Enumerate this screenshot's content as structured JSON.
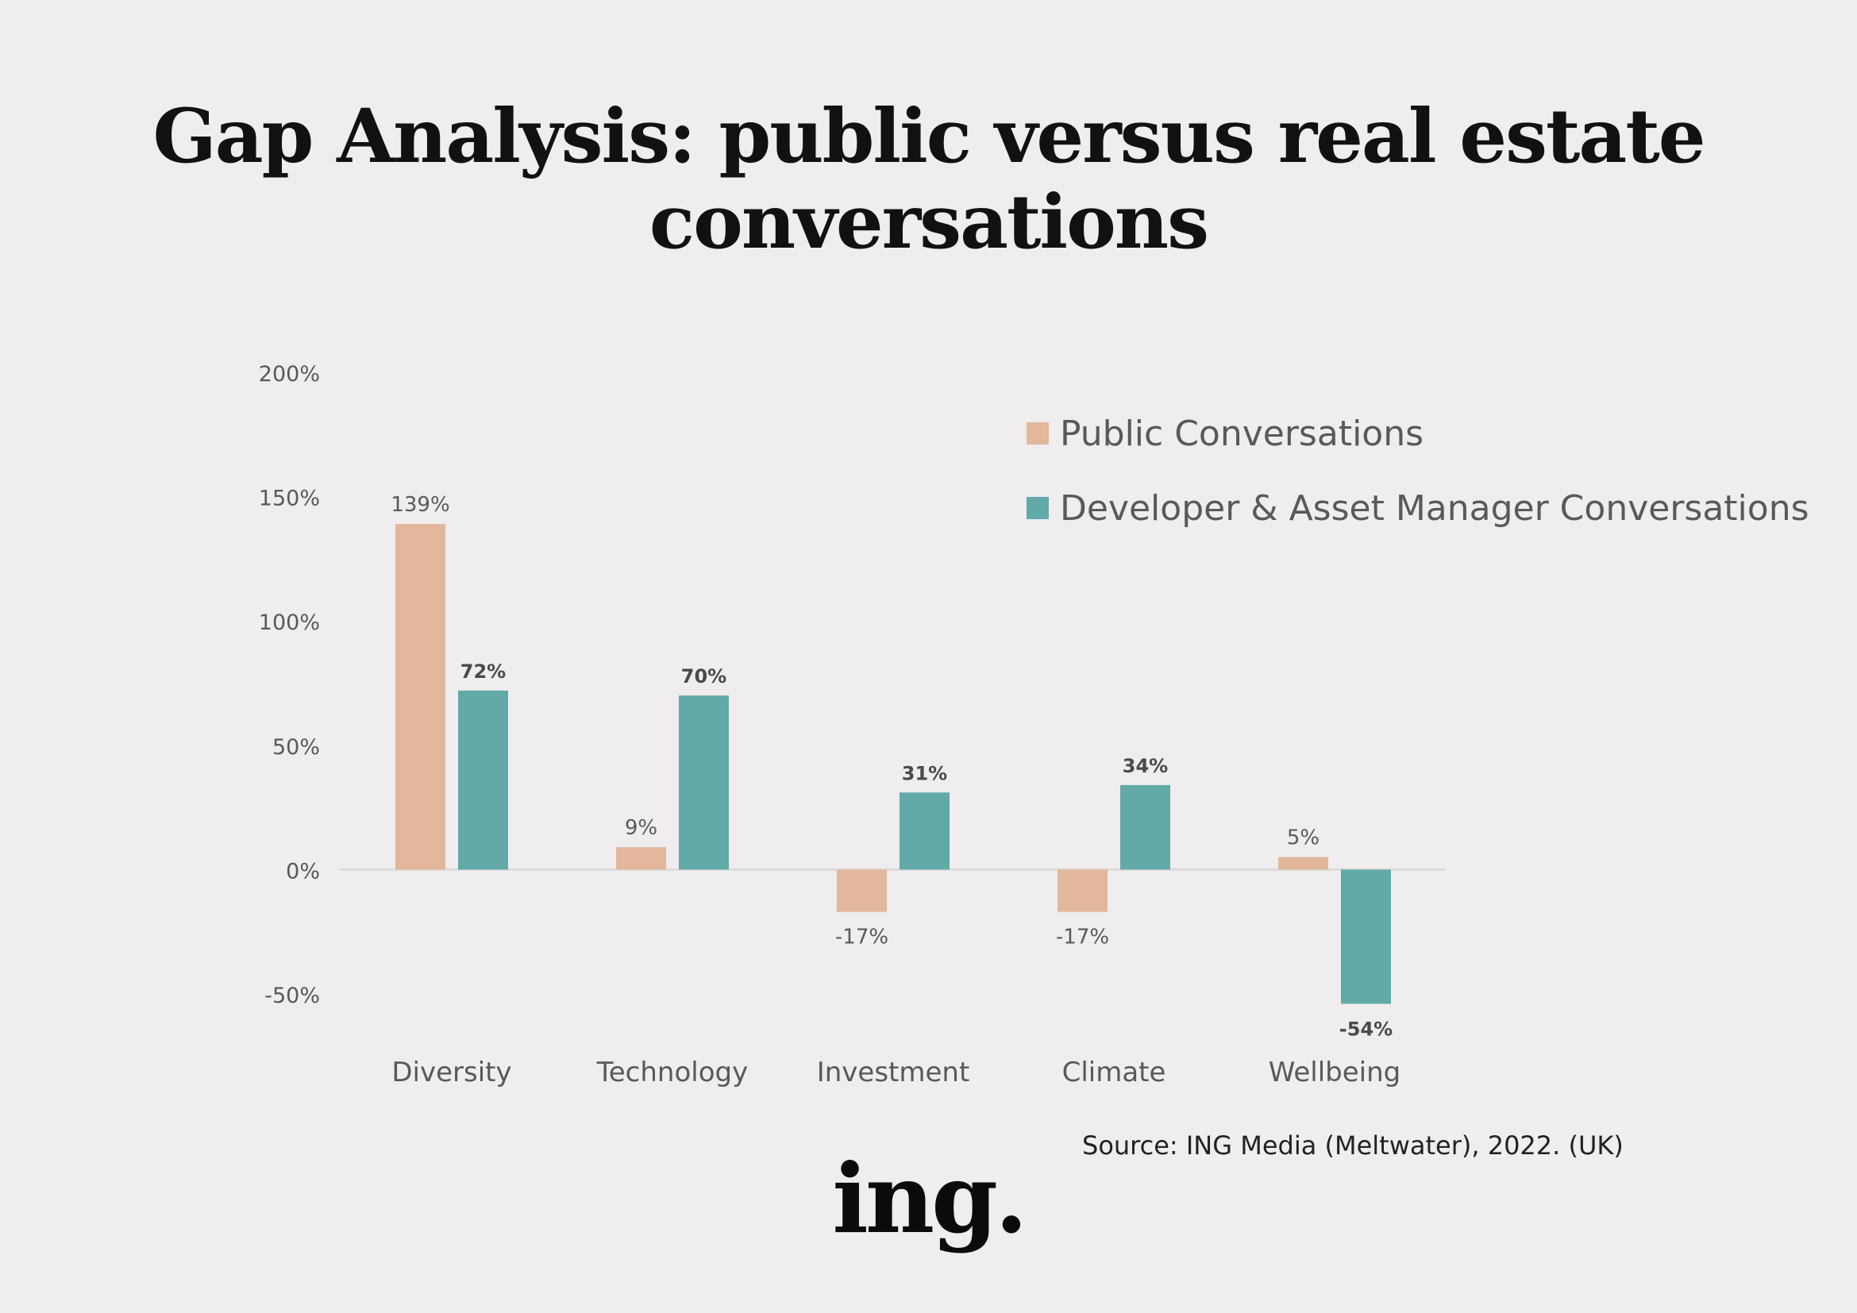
{
  "title_line1": "Gap Analysis: public versus real estate",
  "title_line2": "conversations",
  "source": "Source: ING Media (Meltwater), 2022. (UK)",
  "logo": "ing.",
  "colors": {
    "public": "#e2b79c",
    "developer": "#62aaa7",
    "background": "#efeded",
    "axis_text": "#595959"
  },
  "chart_data": {
    "type": "bar",
    "categories": [
      "Diversity",
      "Technology",
      "Investment",
      "Climate",
      "Wellbeing"
    ],
    "series": [
      {
        "name": "Public Conversations",
        "values": [
          139,
          9,
          -17,
          -17,
          5
        ],
        "labels": [
          "139%",
          "9%",
          "-17%",
          "-17%",
          "5%"
        ]
      },
      {
        "name": "Developer & Asset Manager Conversations",
        "values": [
          72,
          70,
          31,
          34,
          -54
        ],
        "labels": [
          "72%",
          "70%",
          "31%",
          "34%",
          "-54%"
        ]
      }
    ],
    "yticks": [
      200,
      150,
      100,
      50,
      0,
      -50
    ],
    "ytick_labels": [
      "200%",
      "150%",
      "100%",
      "50%",
      "0%",
      "-50%"
    ],
    "ylim": [
      -50,
      200
    ],
    "grid": false,
    "legend": "top-right"
  }
}
